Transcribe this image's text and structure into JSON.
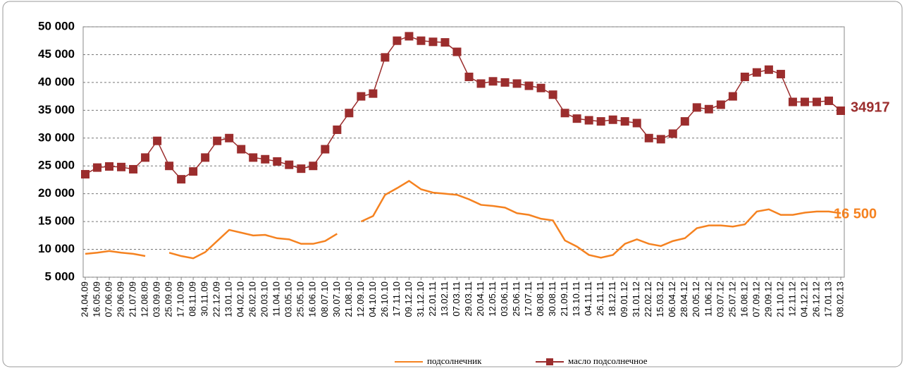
{
  "chart_data": {
    "type": "line",
    "categories": [
      "24.04.09",
      "16.05.09",
      "07.06.09",
      "29.06.09",
      "21.07.09",
      "12.08.09",
      "03.09.09",
      "25.09.09",
      "17.10.09",
      "08.11.09",
      "30.11.09",
      "22.12.09",
      "13.01.10",
      "04.02.10",
      "26.02.10",
      "20.03.10",
      "11.04.10",
      "03.05.10",
      "25.05.10",
      "16.06.10",
      "08.07.10",
      "30.07.10",
      "21.08.10",
      "12.09.10",
      "04.10.10",
      "26.10.10",
      "17.11.10",
      "09.12.10",
      "31.12.10",
      "22.01.11",
      "13.02.11",
      "07.03.11",
      "29.03.11",
      "20.04.11",
      "12.05.11",
      "03.06.11",
      "25.06.11",
      "17.07.11",
      "08.08.11",
      "30.08.11",
      "21.09.11",
      "13.10.11",
      "04.11.11",
      "26.11.11",
      "18.12.11",
      "09.01.12",
      "31.01.12",
      "22.02.12",
      "15.03.12",
      "06.04.12",
      "28.04.12",
      "20.05.12",
      "11.06.12",
      "03.07.12",
      "25.07.12",
      "16.08.12",
      "07.09.12",
      "29.09.12",
      "21.10.12",
      "12.11.12",
      "04.12.12",
      "26.12.12",
      "17.01.13",
      "08.02.13"
    ],
    "series": [
      {
        "name": "подсолнечник",
        "color": "#f58220",
        "marker": false,
        "values": [
          9200,
          9400,
          9700,
          9400,
          9200,
          8800,
          null,
          9400,
          8800,
          8400,
          9500,
          11500,
          13500,
          13000,
          12500,
          12600,
          12000,
          11800,
          11000,
          11000,
          11500,
          12800,
          null,
          15000,
          16000,
          19800,
          21000,
          22300,
          20800,
          20200,
          20000,
          19800,
          19000,
          18000,
          17800,
          17500,
          16500,
          16200,
          15500,
          15200,
          11600,
          10500,
          9000,
          8500,
          9000,
          11000,
          11800,
          11000,
          10600,
          11500,
          12000,
          13800,
          14300,
          14300,
          14100,
          14500,
          16800,
          17200,
          16200,
          16200,
          16600,
          16800,
          16800,
          16500
        ],
        "value_labels": [
          null,
          null,
          null,
          null,
          null,
          null,
          null,
          null,
          null,
          null,
          null,
          null,
          null,
          null,
          null,
          null,
          null,
          null,
          null,
          null,
          null,
          null,
          null,
          null,
          null,
          null,
          null,
          null,
          null,
          null,
          null,
          null,
          null,
          null,
          null,
          null,
          null,
          null,
          null,
          null,
          null,
          null,
          null,
          null,
          null,
          null,
          null,
          null,
          null,
          null,
          null,
          null,
          null,
          null,
          null,
          null,
          null,
          null,
          null,
          null,
          null,
          null,
          null,
          "16 500"
        ]
      },
      {
        "name": "масло подсолнечное",
        "color": "#9b2d2d",
        "marker": true,
        "values": [
          23500,
          24700,
          24900,
          24800,
          24400,
          26500,
          29500,
          25000,
          22600,
          24000,
          26500,
          29500,
          30000,
          28000,
          26500,
          26200,
          25800,
          25200,
          24500,
          25000,
          28000,
          31500,
          34500,
          37500,
          38000,
          44500,
          47500,
          48300,
          47500,
          47300,
          47200,
          45500,
          41000,
          39800,
          40200,
          40000,
          39800,
          39400,
          39000,
          37800,
          34500,
          33500,
          33200,
          33000,
          33300,
          33000,
          32700,
          30000,
          29800,
          30800,
          33000,
          35500,
          35200,
          36000,
          37500,
          41000,
          41800,
          42300,
          41500,
          36500,
          36500,
          36500,
          36700,
          34917
        ]
      }
    ],
    "ylim": [
      5000,
      50000
    ],
    "yticks": [
      {
        "value": 5000,
        "label": "5 000"
      },
      {
        "value": 10000,
        "label": "10 000"
      },
      {
        "value": 15000,
        "label": "15 000"
      },
      {
        "value": 20000,
        "label": "20 000"
      },
      {
        "value": 25000,
        "label": "25 000"
      },
      {
        "value": 30000,
        "label": "30 000"
      },
      {
        "value": 35000,
        "label": "35 000"
      },
      {
        "value": 40000,
        "label": "40 000"
      },
      {
        "value": 45000,
        "label": "45 000"
      },
      {
        "value": 50000,
        "label": "50 000"
      }
    ],
    "grid": true,
    "legend": "bottom"
  }
}
